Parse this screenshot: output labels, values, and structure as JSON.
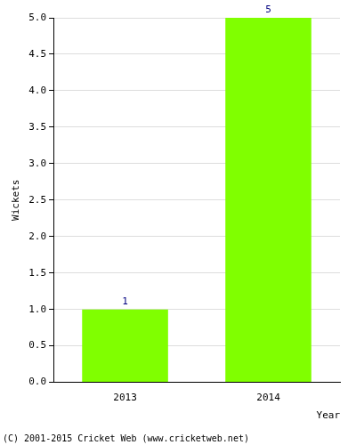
{
  "chart_data": {
    "type": "bar",
    "categories": [
      "2013",
      "2014"
    ],
    "values": [
      1,
      5
    ],
    "color": "#80ff00",
    "x_label": "Year",
    "y_label": "Wickets",
    "ylim": [
      0,
      5
    ],
    "yticks": [
      {
        "value": 0,
        "label": "0.0"
      },
      {
        "value": 0.5,
        "label": "0.5"
      },
      {
        "value": 1,
        "label": "1.0"
      },
      {
        "value": 1.5,
        "label": "1.5"
      },
      {
        "value": 2,
        "label": "2.0"
      },
      {
        "value": 2.5,
        "label": "2.5"
      },
      {
        "value": 3,
        "label": "3.0"
      },
      {
        "value": 3.5,
        "label": "3.5"
      },
      {
        "value": 4,
        "label": "4.0"
      },
      {
        "value": 4.5,
        "label": "4.5"
      },
      {
        "value": 5,
        "label": "5.0"
      }
    ],
    "grid": true,
    "data_labels": true,
    "annotations": [
      "(C) 2001-2015 Cricket Web (www.cricketweb.net)"
    ]
  }
}
